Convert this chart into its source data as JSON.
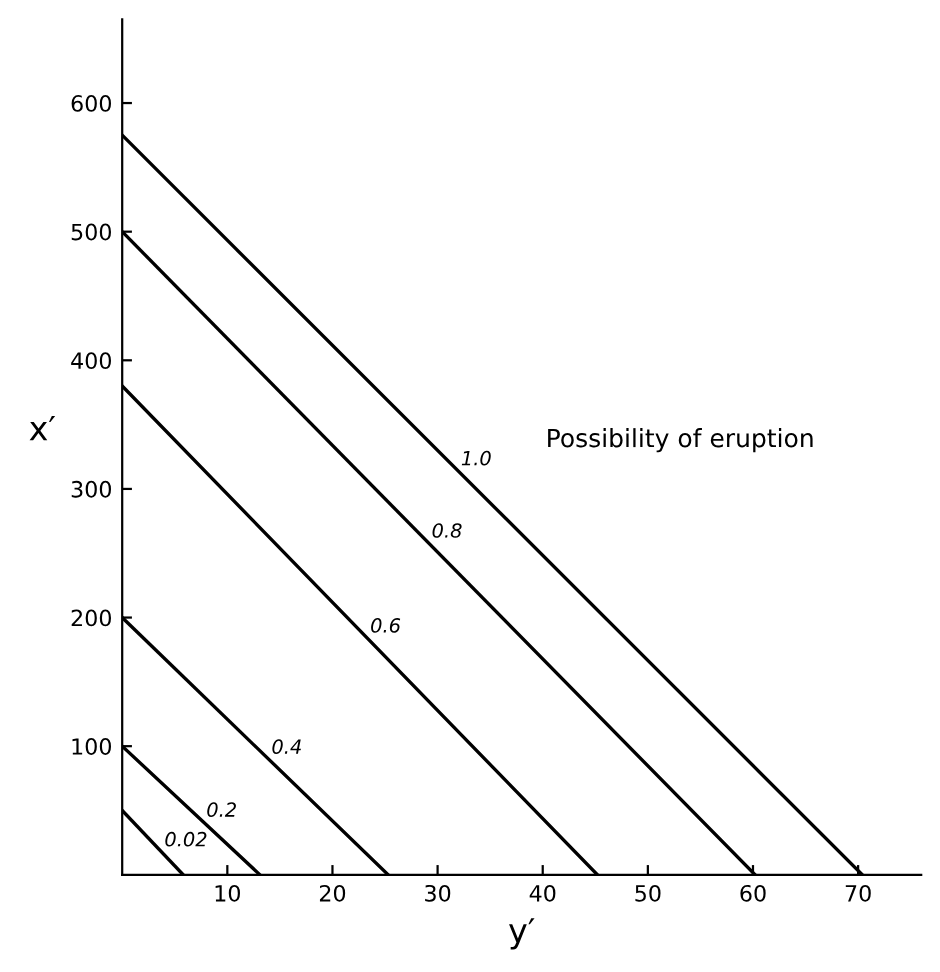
{
  "chart_data": {
    "type": "line",
    "xlabel": "y′",
    "ylabel": "x′",
    "annotations": [
      "Possibility of eruption"
    ],
    "series": [
      {
        "name": "0.02",
        "color": "#000000",
        "x": [
          0,
          5.8
        ],
        "values": [
          50,
          0
        ]
      },
      {
        "name": "0.2",
        "color": "#000000",
        "x": [
          0,
          13.1
        ],
        "values": [
          100,
          0
        ]
      },
      {
        "name": "0.4",
        "color": "#000000",
        "x": [
          0,
          25.3
        ],
        "values": [
          200,
          0
        ]
      },
      {
        "name": "0.6",
        "color": "#000000",
        "x": [
          0,
          45.2
        ],
        "values": [
          380,
          0
        ]
      },
      {
        "name": "0.8",
        "color": "#000000",
        "x": [
          0,
          60.2
        ],
        "values": [
          500,
          0
        ]
      },
      {
        "name": "1.0",
        "color": "#000000",
        "x": [
          0,
          70.4
        ],
        "values": [
          575,
          0
        ]
      }
    ],
    "xlim": [
      0,
      76
    ],
    "ylim": [
      0,
      665
    ],
    "xticks": [
      10,
      20,
      30,
      40,
      50,
      60,
      70
    ],
    "yticks": [
      100,
      200,
      300,
      400,
      500,
      600
    ],
    "grid": false,
    "legend": false,
    "marker": "none",
    "line_style": "solid"
  }
}
